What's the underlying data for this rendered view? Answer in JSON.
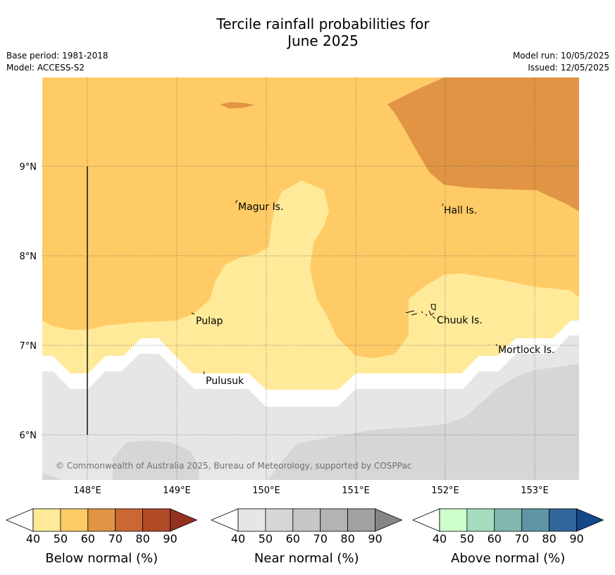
{
  "title": {
    "line1": "Tercile rainfall probabilities for",
    "line2": "June 2025"
  },
  "meta": {
    "base_period": "Base period: 1981-2018",
    "model": "Model: ACCESS-S2",
    "model_run": "Model run: 10/05/2025",
    "issued": "Issued: 12/05/2025"
  },
  "map": {
    "lon_labels": [
      "148°E",
      "149°E",
      "150°E",
      "151°E",
      "152°E",
      "153°E"
    ],
    "lat_labels": [
      "9°N",
      "8°N",
      "7°N",
      "6°N"
    ],
    "places": [
      "Magur Is.",
      "Hall Is.",
      "Pulap",
      "Chuuk Is.",
      "Mortlock Is.",
      "Pulusuk"
    ],
    "copyright": "© Commonwealth of Australia 2025, Bureau of Meteorology, supported by COSPPac"
  },
  "legends": [
    {
      "label": "Below normal (%)",
      "ticks": [
        "40",
        "50",
        "60",
        "70",
        "80",
        "90"
      ],
      "colors": [
        "#ffffff",
        "#ffea9a",
        "#ffcb66",
        "#e09444",
        "#cc6633",
        "#b04a27",
        "#943020"
      ]
    },
    {
      "label": "Near normal (%)",
      "ticks": [
        "40",
        "50",
        "60",
        "70",
        "80",
        "90"
      ],
      "colors": [
        "#ffffff",
        "#e6e6e6",
        "#d6d6d6",
        "#c6c6c6",
        "#b3b3b3",
        "#a2a2a2",
        "#868686"
      ]
    },
    {
      "label": "Above normal (%)",
      "ticks": [
        "40",
        "50",
        "60",
        "70",
        "80",
        "90"
      ],
      "colors": [
        "#ffffff",
        "#ccffcc",
        "#a6dbbf",
        "#80b8b0",
        "#5e95a3",
        "#32669a",
        "#13498a"
      ]
    }
  ]
}
